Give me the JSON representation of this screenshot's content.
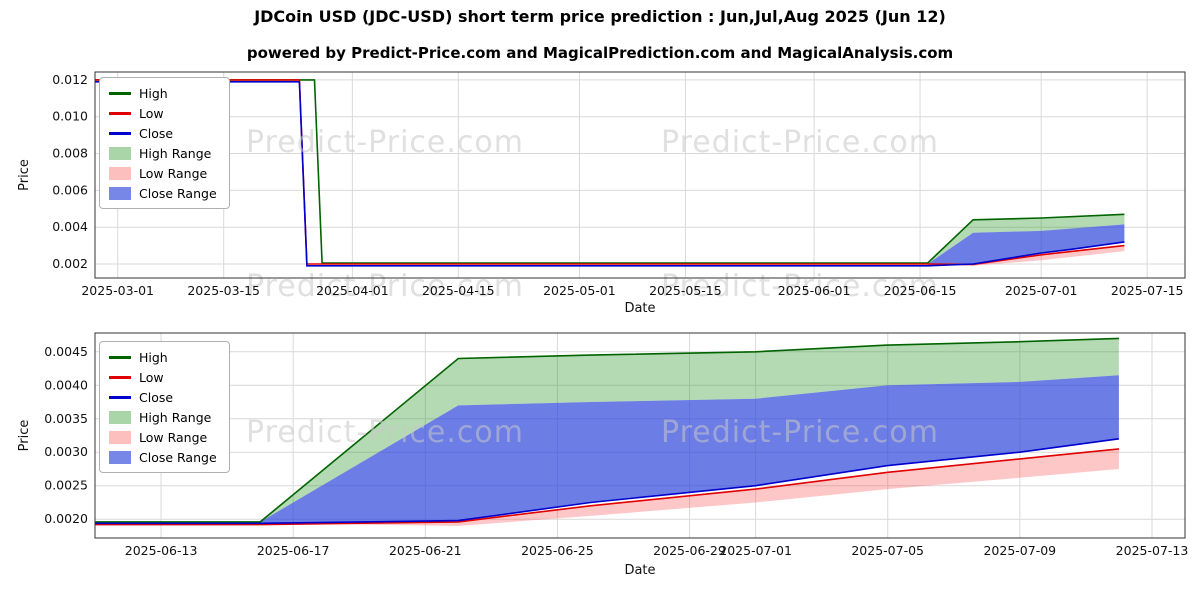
{
  "figure": {
    "title": "JDCoin USD (JDC-USD) short term price prediction : Jun,Jul,Aug 2025 (Jun 12)",
    "subtitle": "powered by Predict-Price.com and MagicalPrediction.com and MagicalAnalysis.com",
    "watermark": "Predict-Price.com"
  },
  "colors": {
    "high_line": "#006400",
    "low_line": "#e00000",
    "close_line": "#0000cd",
    "high_range_fill": "rgba(40,150,40,0.35)",
    "low_range_fill": "rgba(250,70,70,0.30)",
    "close_range_fill": "rgba(45,70,220,0.70)",
    "grid": "#d9d9d9",
    "watermark": "#c8c8c8"
  },
  "chart_data": [
    {
      "type": "line",
      "title": "JDCoin USD (JDC-USD) short term price prediction : Jun,Jul,Aug 2025 (Jun 12)",
      "xlabel": "Date",
      "ylabel": "Price",
      "xlim": [
        "2025-02-26",
        "2025-07-20"
      ],
      "ylim": [
        0.00124,
        0.01243
      ],
      "grid": true,
      "legend_position": "upper left",
      "x_ticks": [
        "2025-03-01",
        "2025-03-15",
        "2025-04-01",
        "2025-04-15",
        "2025-05-01",
        "2025-05-15",
        "2025-06-01",
        "2025-06-15",
        "2025-07-01",
        "2025-07-15"
      ],
      "y_ticks": [
        {
          "v": 0.002,
          "label": "0.002"
        },
        {
          "v": 0.004,
          "label": "0.004"
        },
        {
          "v": 0.006,
          "label": "0.006"
        },
        {
          "v": 0.008,
          "label": "0.008"
        },
        {
          "v": 0.01,
          "label": "0.010"
        },
        {
          "v": 0.012,
          "label": "0.012"
        }
      ],
      "series": [
        {
          "name": "High",
          "color": "#006400",
          "x": [
            "2025-02-26",
            "2025-03-27",
            "2025-03-28",
            "2025-06-16",
            "2025-06-22",
            "2025-07-01",
            "2025-07-12"
          ],
          "y": [
            0.012,
            0.012,
            0.00205,
            0.00205,
            0.0044,
            0.0045,
            0.0047
          ]
        },
        {
          "name": "Low",
          "color": "#e00000",
          "x": [
            "2025-02-26",
            "2025-03-25",
            "2025-03-26",
            "2025-06-16",
            "2025-06-22",
            "2025-07-01",
            "2025-07-12"
          ],
          "y": [
            0.012,
            0.012,
            0.002,
            0.002,
            0.00198,
            0.0025,
            0.003
          ]
        },
        {
          "name": "Close",
          "color": "#0000cd",
          "x": [
            "2025-02-26",
            "2025-03-25",
            "2025-03-26",
            "2025-06-16",
            "2025-06-22",
            "2025-07-01",
            "2025-07-05",
            "2025-07-12"
          ],
          "y": [
            0.0119,
            0.0119,
            0.0019,
            0.0019,
            0.002,
            0.0026,
            0.0028,
            0.0032
          ]
        }
      ],
      "bands": [
        {
          "name": "High Range",
          "color": "rgba(40,150,40,0.35)",
          "x": [
            "2025-06-16",
            "2025-06-22",
            "2025-07-01",
            "2025-07-12"
          ],
          "upper": [
            0.002,
            0.0044,
            0.0045,
            0.0047
          ],
          "lower": [
            0.002,
            0.0037,
            0.0038,
            0.00415
          ]
        },
        {
          "name": "Low Range",
          "color": "rgba(250,70,70,0.30)",
          "x": [
            "2025-06-16",
            "2025-06-22",
            "2025-07-01",
            "2025-07-12"
          ],
          "upper": [
            0.00195,
            0.00198,
            0.0025,
            0.00305
          ],
          "lower": [
            0.00195,
            0.0019,
            0.0022,
            0.0027
          ]
        },
        {
          "name": "Close Range",
          "color": "rgba(45,70,220,0.70)",
          "x": [
            "2025-06-16",
            "2025-06-22",
            "2025-07-01",
            "2025-07-12"
          ],
          "upper": [
            0.002,
            0.0037,
            0.0038,
            0.00415
          ],
          "lower": [
            0.00195,
            0.00198,
            0.0026,
            0.0032
          ]
        }
      ],
      "legend": [
        {
          "label": "High",
          "swatch": "line",
          "color": "#006400"
        },
        {
          "label": "Low",
          "swatch": "line",
          "color": "#e00000"
        },
        {
          "label": "Close",
          "swatch": "line",
          "color": "#0000cd"
        },
        {
          "label": "High Range",
          "swatch": "patch",
          "color": "rgba(40,150,40,0.40)"
        },
        {
          "label": "Low Range",
          "swatch": "patch",
          "color": "rgba(250,70,70,0.35)"
        },
        {
          "label": "Close Range",
          "swatch": "patch",
          "color": "rgba(45,70,220,0.65)"
        }
      ]
    },
    {
      "type": "line",
      "title": "",
      "xlabel": "Date",
      "ylabel": "Price",
      "xlim": [
        "2025-06-11",
        "2025-07-14"
      ],
      "ylim": [
        0.00172,
        0.00478
      ],
      "grid": true,
      "legend_position": "upper left",
      "x_ticks": [
        "2025-06-13",
        "2025-06-17",
        "2025-06-21",
        "2025-06-25",
        "2025-06-29",
        "2025-07-01",
        "2025-07-05",
        "2025-07-09",
        "2025-07-13"
      ],
      "y_ticks": [
        {
          "v": 0.002,
          "label": "0.0020"
        },
        {
          "v": 0.0025,
          "label": "0.0025"
        },
        {
          "v": 0.003,
          "label": "0.0030"
        },
        {
          "v": 0.0035,
          "label": "0.0035"
        },
        {
          "v": 0.004,
          "label": "0.0040"
        },
        {
          "v": 0.0045,
          "label": "0.0045"
        }
      ],
      "series": [
        {
          "name": "High",
          "color": "#006400",
          "x": [
            "2025-06-11",
            "2025-06-16",
            "2025-06-22",
            "2025-06-26",
            "2025-07-01",
            "2025-07-05",
            "2025-07-09",
            "2025-07-12"
          ],
          "y": [
            0.00196,
            0.00196,
            0.0044,
            0.00445,
            0.0045,
            0.0046,
            0.00465,
            0.0047
          ]
        },
        {
          "name": "Low",
          "color": "#e00000",
          "x": [
            "2025-06-11",
            "2025-06-16",
            "2025-06-22",
            "2025-06-26",
            "2025-07-01",
            "2025-07-05",
            "2025-07-09",
            "2025-07-12"
          ],
          "y": [
            0.00192,
            0.00192,
            0.00196,
            0.0022,
            0.00245,
            0.0027,
            0.0029,
            0.00305
          ]
        },
        {
          "name": "Close",
          "color": "#0000cd",
          "x": [
            "2025-06-11",
            "2025-06-16",
            "2025-06-22",
            "2025-06-26",
            "2025-07-01",
            "2025-07-05",
            "2025-07-09",
            "2025-07-12"
          ],
          "y": [
            0.00194,
            0.00194,
            0.00198,
            0.00225,
            0.0025,
            0.0028,
            0.003,
            0.0032
          ]
        }
      ],
      "bands": [
        {
          "name": "High Range",
          "color": "rgba(40,150,40,0.35)",
          "x": [
            "2025-06-16",
            "2025-06-22",
            "2025-06-26",
            "2025-07-01",
            "2025-07-05",
            "2025-07-09",
            "2025-07-12"
          ],
          "upper": [
            0.00196,
            0.0044,
            0.00445,
            0.0045,
            0.0046,
            0.00465,
            0.0047
          ],
          "lower": [
            0.00196,
            0.0037,
            0.00375,
            0.0038,
            0.004,
            0.00405,
            0.00415
          ]
        },
        {
          "name": "Low Range",
          "color": "rgba(250,70,70,0.30)",
          "x": [
            "2025-06-16",
            "2025-06-22",
            "2025-06-26",
            "2025-07-01",
            "2025-07-05",
            "2025-07-09",
            "2025-07-12"
          ],
          "upper": [
            0.00194,
            0.00198,
            0.0022,
            0.00245,
            0.0027,
            0.0029,
            0.00305
          ],
          "lower": [
            0.00194,
            0.0019,
            0.00205,
            0.00225,
            0.00245,
            0.00262,
            0.00275
          ]
        },
        {
          "name": "Close Range",
          "color": "rgba(45,70,220,0.70)",
          "x": [
            "2025-06-16",
            "2025-06-22",
            "2025-06-26",
            "2025-07-01",
            "2025-07-05",
            "2025-07-09",
            "2025-07-12"
          ],
          "upper": [
            0.00196,
            0.0037,
            0.00375,
            0.0038,
            0.004,
            0.00405,
            0.00415
          ],
          "lower": [
            0.00194,
            0.00198,
            0.00225,
            0.0025,
            0.0028,
            0.003,
            0.0032
          ]
        }
      ],
      "legend": [
        {
          "label": "High",
          "swatch": "line",
          "color": "#006400"
        },
        {
          "label": "Low",
          "swatch": "line",
          "color": "#e00000"
        },
        {
          "label": "Close",
          "swatch": "line",
          "color": "#0000cd"
        },
        {
          "label": "High Range",
          "swatch": "patch",
          "color": "rgba(40,150,40,0.40)"
        },
        {
          "label": "Low Range",
          "swatch": "patch",
          "color": "rgba(250,70,70,0.35)"
        },
        {
          "label": "Close Range",
          "swatch": "patch",
          "color": "rgba(45,70,220,0.65)"
        }
      ]
    }
  ]
}
